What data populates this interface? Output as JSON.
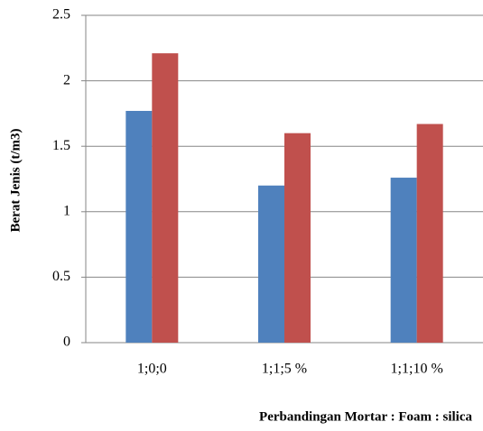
{
  "chart_data": {
    "type": "bar",
    "x_label": "Perbandingan Mortar : Foam : silica",
    "y_label": "Berat Jenis (t/m3)",
    "categories": [
      "1;0;0",
      "1;1;5 %",
      "1;1;10 %"
    ],
    "series": [
      {
        "color": "#4f81bd",
        "values": [
          1.77,
          1.2,
          1.26
        ]
      },
      {
        "color": "#c0504d",
        "values": [
          2.21,
          1.6,
          1.67
        ]
      }
    ],
    "ylim": [
      0,
      2.5
    ],
    "yticks": [
      0,
      0.5,
      1,
      1.5,
      2,
      2.5
    ],
    "grid": true
  }
}
